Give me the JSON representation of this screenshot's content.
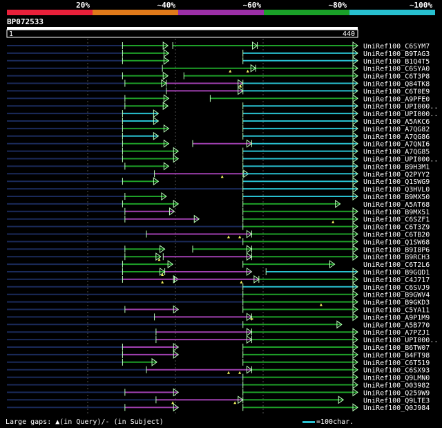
{
  "chart_data": {
    "type": "alignment-overview",
    "query": {
      "name": "BP072533",
      "start": "1",
      "end": "440",
      "length": 440
    },
    "identity_legend": [
      {
        "label": "20%",
        "color": "#e8203a"
      },
      {
        "label": "~40%",
        "color": "#e07a1a"
      },
      {
        "label": "~60%",
        "color": "#9b2fa6"
      },
      {
        "label": "~80%",
        "color": "#1aa028"
      },
      {
        "label": "~100%",
        "color": "#28c0d0"
      }
    ],
    "colors": {
      "purple": "#a040b0",
      "green": "#1ea028",
      "cyan": "#28c0d0",
      "faint": "#1a2a5a",
      "gap": "#f0f060"
    },
    "footer": {
      "gaps_text": "Large gaps: ▲(in Query)/- (in Subject)",
      "scale_text": "=100char."
    },
    "hits": [
      {
        "label": "UniRef100_C6SYM7",
        "faint": [
          0,
          145
        ],
        "segs": [
          {
            "s": 145,
            "e": 202,
            "c": "green"
          },
          {
            "s": 208,
            "e": 314,
            "c": "green"
          },
          {
            "s": 314,
            "e": 440,
            "c": "green"
          }
        ],
        "qgaps": [],
        "sgaps": []
      },
      {
        "label": "UniRef100_B9TAG3",
        "faint": [
          0,
          145
        ],
        "segs": [
          {
            "s": 145,
            "e": 203,
            "c": "green"
          },
          {
            "s": 296,
            "e": 440,
            "c": "cyan"
          }
        ],
        "qgaps": [],
        "sgaps": []
      },
      {
        "label": "UniRef100_B1Q4T5",
        "faint": [
          0,
          145
        ],
        "segs": [
          {
            "s": 145,
            "e": 203,
            "c": "green"
          },
          {
            "s": 296,
            "e": 440,
            "c": "cyan"
          }
        ],
        "qgaps": [],
        "sgaps": []
      },
      {
        "label": "UniRef100_C6SYA0",
        "faint": [
          0,
          195
        ],
        "segs": [
          {
            "s": 195,
            "e": 312,
            "c": "green"
          },
          {
            "s": 312,
            "e": 440,
            "c": "green"
          }
        ],
        "qgaps": [
          280,
          302
        ],
        "sgaps": []
      },
      {
        "label": "UniRef100_C6T3P8",
        "faint": [
          0,
          145
        ],
        "segs": [
          {
            "s": 145,
            "e": 202,
            "c": "green"
          },
          {
            "s": 222,
            "e": 440,
            "c": "green"
          }
        ],
        "qgaps": [],
        "sgaps": []
      },
      {
        "label": "UniRef100_Q84TK8",
        "faint": [
          0,
          148
        ],
        "segs": [
          {
            "s": 148,
            "e": 200,
            "c": "green"
          },
          {
            "s": 200,
            "e": 296,
            "c": "purple"
          },
          {
            "s": 296,
            "e": 440,
            "c": "cyan"
          }
        ],
        "qgaps": [
          293
        ],
        "sgaps": []
      },
      {
        "label": "UniRef100_C6T0E9",
        "faint": [
          0,
          200
        ],
        "segs": [
          {
            "s": 200,
            "e": 296,
            "c": "purple"
          },
          {
            "s": 296,
            "e": 440,
            "c": "cyan"
          }
        ],
        "qgaps": [],
        "sgaps": []
      },
      {
        "label": "UniRef100_A9PFE0",
        "faint": [
          0,
          148
        ],
        "segs": [
          {
            "s": 148,
            "e": 203,
            "c": "green"
          },
          {
            "s": 255,
            "e": 440,
            "c": "green"
          }
        ],
        "qgaps": [],
        "sgaps": []
      },
      {
        "label": "UniRef100_UPI000..",
        "faint": [
          0,
          148
        ],
        "segs": [
          {
            "s": 148,
            "e": 202,
            "c": "green"
          },
          {
            "s": 296,
            "e": 440,
            "c": "cyan"
          }
        ],
        "qgaps": [],
        "sgaps": []
      },
      {
        "label": "UniRef100_UPI000..",
        "faint": [
          0,
          145
        ],
        "segs": [
          {
            "s": 145,
            "e": 190,
            "c": "cyan"
          },
          {
            "s": 296,
            "e": 440,
            "c": "cyan"
          }
        ],
        "qgaps": [],
        "sgaps": []
      },
      {
        "label": "UniRef100_A5AKC6",
        "faint": [
          0,
          145
        ],
        "segs": [
          {
            "s": 145,
            "e": 190,
            "c": "cyan"
          },
          {
            "s": 296,
            "e": 440,
            "c": "cyan"
          }
        ],
        "qgaps": [],
        "sgaps": []
      },
      {
        "label": "UniRef100_A7QG82",
        "faint": [
          0,
          145
        ],
        "segs": [
          {
            "s": 145,
            "e": 203,
            "c": "green"
          },
          {
            "s": 296,
            "e": 440,
            "c": "cyan"
          }
        ],
        "qgaps": [],
        "sgaps": []
      },
      {
        "label": "UniRef100_A7QG86",
        "faint": [
          0,
          145
        ],
        "segs": [
          {
            "s": 145,
            "e": 190,
            "c": "cyan"
          },
          {
            "s": 296,
            "e": 440,
            "c": "cyan"
          }
        ],
        "qgaps": [],
        "sgaps": []
      },
      {
        "label": "UniRef100_A7QNI6",
        "faint": [
          0,
          145
        ],
        "segs": [
          {
            "s": 145,
            "e": 203,
            "c": "green"
          },
          {
            "s": 233,
            "e": 307,
            "c": "purple"
          },
          {
            "s": 307,
            "e": 440,
            "c": "cyan"
          }
        ],
        "qgaps": [],
        "sgaps": []
      },
      {
        "label": "UniRef100_A7QG85",
        "faint": [
          0,
          145
        ],
        "segs": [
          {
            "s": 145,
            "e": 215,
            "c": "green"
          },
          {
            "s": 296,
            "e": 440,
            "c": "cyan"
          }
        ],
        "qgaps": [],
        "sgaps": []
      },
      {
        "label": "UniRef100_UPI000..",
        "faint": [
          0,
          145
        ],
        "segs": [
          {
            "s": 145,
            "e": 215,
            "c": "green"
          },
          {
            "s": 296,
            "e": 440,
            "c": "cyan"
          }
        ],
        "qgaps": [],
        "sgaps": []
      },
      {
        "label": "UniRef100_B9H3M1",
        "faint": [
          0,
          148
        ],
        "segs": [
          {
            "s": 148,
            "e": 203,
            "c": "green"
          },
          {
            "s": 296,
            "e": 440,
            "c": "cyan"
          }
        ],
        "qgaps": [],
        "sgaps": []
      },
      {
        "label": "UniRef100_Q2PYY2",
        "faint": [
          0,
          185
        ],
        "segs": [
          {
            "s": 185,
            "e": 303,
            "c": "purple"
          },
          {
            "s": 296,
            "e": 440,
            "c": "cyan"
          }
        ],
        "qgaps": [
          270
        ],
        "sgaps": []
      },
      {
        "label": "UniRef100_Q1SWG9",
        "faint": [
          0,
          145
        ],
        "segs": [
          {
            "s": 145,
            "e": 190,
            "c": "green"
          },
          {
            "s": 296,
            "e": 440,
            "c": "cyan"
          }
        ],
        "qgaps": [],
        "sgaps": []
      },
      {
        "label": "UniRef100_Q3HVL0",
        "faint": [
          0,
          296
        ],
        "segs": [
          {
            "s": 296,
            "e": 440,
            "c": "cyan"
          }
        ],
        "qgaps": [],
        "sgaps": []
      },
      {
        "label": "UniRef100_B9MX50",
        "faint": [
          0,
          148
        ],
        "segs": [
          {
            "s": 148,
            "e": 200,
            "c": "green"
          },
          {
            "s": 296,
            "e": 440,
            "c": "cyan"
          }
        ],
        "qgaps": [],
        "sgaps": []
      },
      {
        "label": "UniRef100_A5AT68",
        "faint": [
          0,
          145
        ],
        "segs": [
          {
            "s": 145,
            "e": 215,
            "c": "green"
          },
          {
            "s": 296,
            "e": 418,
            "c": "green"
          }
        ],
        "qgaps": [],
        "sgaps": []
      },
      {
        "label": "UniRef100_B9MX51",
        "faint": [
          0,
          148
        ],
        "segs": [
          {
            "s": 148,
            "e": 210,
            "c": "purple"
          },
          {
            "s": 296,
            "e": 440,
            "c": "green"
          }
        ],
        "qgaps": [],
        "sgaps": []
      },
      {
        "label": "UniRef100_C6SZF1",
        "faint": [
          0,
          148
        ],
        "segs": [
          {
            "s": 148,
            "e": 241,
            "c": "purple"
          },
          {
            "s": 296,
            "e": 440,
            "c": "green"
          }
        ],
        "qgaps": [
          409
        ],
        "sgaps": []
      },
      {
        "label": "UniRef100_C6T3Z9",
        "faint": [
          0,
          296
        ],
        "segs": [
          {
            "s": 296,
            "e": 440,
            "c": "green"
          }
        ],
        "qgaps": [],
        "sgaps": []
      },
      {
        "label": "UniRef100_C6TB20",
        "faint": [
          0,
          175
        ],
        "segs": [
          {
            "s": 175,
            "e": 307,
            "c": "purple"
          },
          {
            "s": 307,
            "e": 440,
            "c": "green"
          }
        ],
        "qgaps": [
          278,
          292
        ],
        "sgaps": []
      },
      {
        "label": "UniRef100_Q1SW68",
        "faint": [
          0,
          296
        ],
        "segs": [
          {
            "s": 296,
            "e": 440,
            "c": "green"
          }
        ],
        "qgaps": [],
        "sgaps": []
      },
      {
        "label": "UniRef100_B9I8P6",
        "faint": [
          0,
          148
        ],
        "segs": [
          {
            "s": 148,
            "e": 198,
            "c": "green"
          },
          {
            "s": 233,
            "e": 307,
            "c": "green"
          },
          {
            "s": 307,
            "e": 440,
            "c": "green"
          }
        ],
        "qgaps": [],
        "sgaps": []
      },
      {
        "label": "UniRef100_B9RCH3",
        "faint": [
          0,
          148
        ],
        "segs": [
          {
            "s": 148,
            "e": 193,
            "c": "green"
          },
          {
            "s": 196,
            "e": 307,
            "c": "purple"
          },
          {
            "s": 307,
            "e": 440,
            "c": "green"
          }
        ],
        "qgaps": [
          191
        ],
        "sgaps": []
      },
      {
        "label": "UniRef100_C6T2L6",
        "faint": [
          0,
          145
        ],
        "segs": [
          {
            "s": 145,
            "e": 208,
            "c": "green"
          },
          {
            "s": 296,
            "e": 411,
            "c": "green"
          }
        ],
        "qgaps": [],
        "sgaps": []
      },
      {
        "label": "UniRef100_B9GQD1",
        "faint": [
          0,
          145
        ],
        "segs": [
          {
            "s": 145,
            "e": 198,
            "c": "green"
          },
          {
            "s": 198,
            "e": 307,
            "c": "purple"
          },
          {
            "s": 325,
            "e": 440,
            "c": "cyan"
          }
        ],
        "qgaps": [
          195
        ],
        "sgaps": []
      },
      {
        "label": "UniRef100_C4J717",
        "faint": [
          0,
          145
        ],
        "segs": [
          {
            "s": 145,
            "e": 215,
            "c": "purple"
          },
          {
            "s": 210,
            "e": 316,
            "c": "purple"
          },
          {
            "s": 316,
            "e": 440,
            "c": "green"
          }
        ],
        "qgaps": [
          195,
          294
        ],
        "sgaps": []
      },
      {
        "label": "UniRef100_C6SVJ9",
        "faint": [
          0,
          296
        ],
        "segs": [
          {
            "s": 296,
            "e": 440,
            "c": "cyan"
          }
        ],
        "qgaps": [],
        "sgaps": []
      },
      {
        "label": "UniRef100_B9GWV4",
        "faint": [
          0,
          296
        ],
        "segs": [
          {
            "s": 296,
            "e": 440,
            "c": "green"
          }
        ],
        "qgaps": [],
        "sgaps": []
      },
      {
        "label": "UniRef100_B9GKD3",
        "faint": [
          0,
          296
        ],
        "segs": [
          {
            "s": 296,
            "e": 440,
            "c": "green"
          }
        ],
        "qgaps": [
          394
        ],
        "sgaps": []
      },
      {
        "label": "UniRef100_C5YA11",
        "faint": [
          0,
          148
        ],
        "segs": [
          {
            "s": 148,
            "e": 215,
            "c": "purple"
          },
          {
            "s": 296,
            "e": 440,
            "c": "green"
          }
        ],
        "qgaps": [],
        "sgaps": []
      },
      {
        "label": "UniRef100_A9P1M9",
        "faint": [
          0,
          185
        ],
        "segs": [
          {
            "s": 185,
            "e": 307,
            "c": "purple"
          },
          {
            "s": 307,
            "e": 440,
            "c": "green"
          }
        ],
        "qgaps": [],
        "sgaps": [
          307
        ]
      },
      {
        "label": "UniRef100_A5B770",
        "faint": [
          0,
          296
        ],
        "segs": [
          {
            "s": 296,
            "e": 420,
            "c": "green"
          }
        ],
        "qgaps": [],
        "sgaps": []
      },
      {
        "label": "UniRef100_A7PZJ1",
        "faint": [
          0,
          187
        ],
        "segs": [
          {
            "s": 187,
            "e": 307,
            "c": "purple"
          },
          {
            "s": 307,
            "e": 440,
            "c": "green"
          }
        ],
        "qgaps": [],
        "sgaps": []
      },
      {
        "label": "UniRef100_UPI000..",
        "faint": [
          0,
          187
        ],
        "segs": [
          {
            "s": 187,
            "e": 307,
            "c": "purple"
          },
          {
            "s": 307,
            "e": 440,
            "c": "green"
          }
        ],
        "qgaps": [],
        "sgaps": []
      },
      {
        "label": "UniRef100_B6TW07",
        "faint": [
          0,
          145
        ],
        "segs": [
          {
            "s": 145,
            "e": 215,
            "c": "purple"
          },
          {
            "s": 296,
            "e": 440,
            "c": "green"
          }
        ],
        "qgaps": [],
        "sgaps": []
      },
      {
        "label": "UniRef100_B4FT98",
        "faint": [
          0,
          145
        ],
        "segs": [
          {
            "s": 145,
            "e": 215,
            "c": "purple"
          },
          {
            "s": 296,
            "e": 440,
            "c": "green"
          }
        ],
        "qgaps": [],
        "sgaps": []
      },
      {
        "label": "UniRef100_C6T519",
        "faint": [
          0,
          145
        ],
        "segs": [
          {
            "s": 145,
            "e": 188,
            "c": "green"
          },
          {
            "s": 296,
            "e": 440,
            "c": "green"
          }
        ],
        "qgaps": [],
        "sgaps": []
      },
      {
        "label": "UniRef100_C6SX93",
        "faint": [
          0,
          175
        ],
        "segs": [
          {
            "s": 175,
            "e": 307,
            "c": "purple"
          },
          {
            "s": 307,
            "e": 440,
            "c": "green"
          }
        ],
        "qgaps": [
          278,
          292
        ],
        "sgaps": []
      },
      {
        "label": "UniRef100_Q9LMN0",
        "faint": [
          0,
          296
        ],
        "segs": [
          {
            "s": 296,
            "e": 440,
            "c": "green"
          }
        ],
        "qgaps": [],
        "sgaps": []
      },
      {
        "label": "UniRef100_O03982",
        "faint": [
          0,
          296
        ],
        "segs": [
          {
            "s": 296,
            "e": 440,
            "c": "green"
          }
        ],
        "qgaps": [],
        "sgaps": []
      },
      {
        "label": "UniRef100_Q259W9",
        "faint": [
          0,
          148
        ],
        "segs": [
          {
            "s": 148,
            "e": 215,
            "c": "purple"
          },
          {
            "s": 296,
            "e": 440,
            "c": "green"
          }
        ],
        "qgaps": [],
        "sgaps": []
      },
      {
        "label": "UniRef100_Q9LTE3",
        "faint": [
          0,
          187
        ],
        "segs": [
          {
            "s": 187,
            "e": 296,
            "c": "purple"
          },
          {
            "s": 296,
            "e": 422,
            "c": "green"
          }
        ],
        "qgaps": [
          208,
          286
        ],
        "sgaps": []
      },
      {
        "label": "UniRef100_Q0J984",
        "faint": [
          0,
          148
        ],
        "segs": [
          {
            "s": 148,
            "e": 215,
            "c": "purple"
          },
          {
            "s": 296,
            "e": 440,
            "c": "green"
          }
        ],
        "qgaps": [],
        "sgaps": []
      }
    ]
  }
}
